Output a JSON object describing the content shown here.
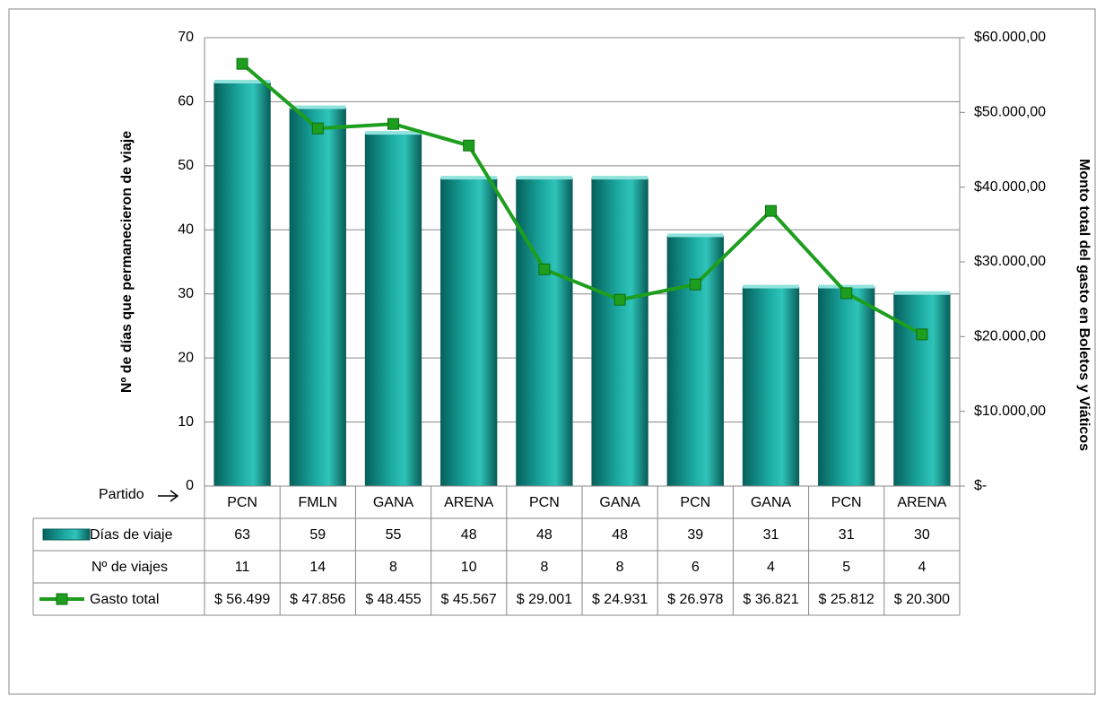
{
  "chart_data": {
    "type": "bar_line_table",
    "x_label": "Partido",
    "y_label": "Nº de días que permanecieron de viaje",
    "y2_label": "Monto total del gasto en Boletos y Viáticos",
    "categories": [
      "PCN",
      "FMLN",
      "GANA",
      "ARENA",
      "PCN",
      "GANA",
      "PCN",
      "GANA",
      "PCN",
      "ARENA"
    ],
    "series": [
      {
        "name": "Días de viaje",
        "color": "#1aa8a0",
        "values": [
          63,
          59,
          55,
          48,
          48,
          48,
          39,
          31,
          31,
          30
        ]
      },
      {
        "name": "Nº de viajes",
        "values": [
          11,
          14,
          8,
          10,
          8,
          8,
          6,
          4,
          5,
          4
        ]
      },
      {
        "name": "Gasto total",
        "color": "#1e9e1e",
        "axis": "y2",
        "values": [
          56499,
          47856,
          48455,
          45567,
          29001,
          24931,
          26978,
          36821,
          25812,
          20300
        ],
        "value_labels": [
          "$ 56.499",
          "$ 47.856",
          "$ 48.455",
          "$ 45.567",
          "$ 29.001",
          "$ 24.931",
          "$ 26.978",
          "$ 36.821",
          "$ 25.812",
          "$ 20.300"
        ]
      }
    ],
    "ylim": [
      0,
      70
    ],
    "yticks": [
      0,
      10,
      20,
      30,
      40,
      50,
      60,
      70
    ],
    "y2lim": [
      0,
      60000
    ],
    "y2ticks": [
      {
        "value": 0,
        "label": "$-"
      },
      {
        "value": 10000,
        "label": "$10.000,00"
      },
      {
        "value": 20000,
        "label": "$20.000,00"
      },
      {
        "value": 30000,
        "label": "$30.000,00"
      },
      {
        "value": 40000,
        "label": "$40.000,00"
      },
      {
        "value": 50000,
        "label": "$50.000,00"
      },
      {
        "value": 60000,
        "label": "$60.000,00"
      }
    ],
    "grid": true
  }
}
